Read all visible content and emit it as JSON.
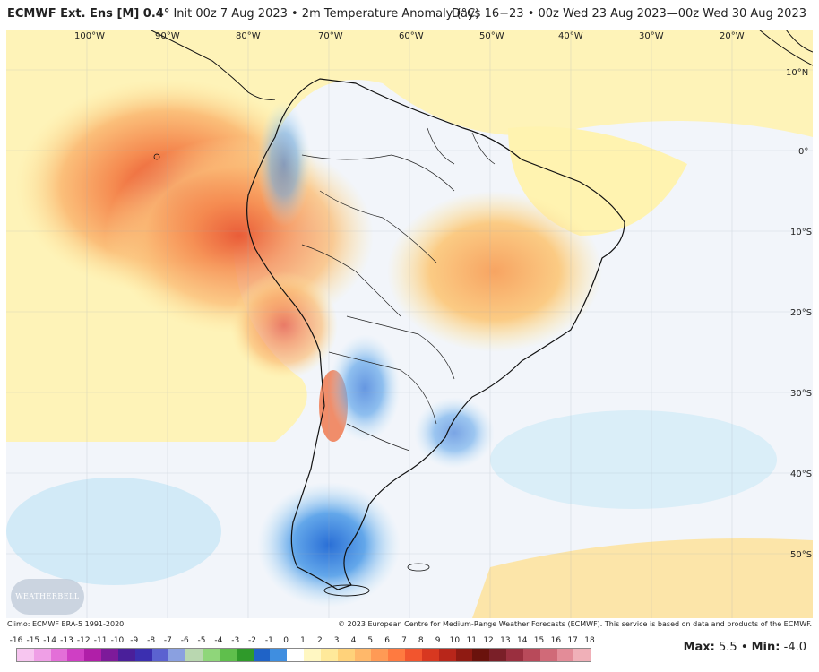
{
  "header": {
    "model_name": "ECMWF Ext. Ens [M] 0.4°",
    "run_info": " Init 00z 7 Aug 2023 • 2m Temperature Anomaly (°C)",
    "valid_range": "Days 16−23 • 00z Wed 23 Aug 2023—00z Wed 30 Aug 2023"
  },
  "map": {
    "longitude_labels": [
      "100°W",
      "90°W",
      "80°W",
      "70°W",
      "60°W",
      "50°W",
      "40°W",
      "30°W",
      "20°W"
    ],
    "latitude_labels": [
      "10°N",
      "0°",
      "10°S",
      "20°S",
      "30°S",
      "40°S",
      "50°S"
    ],
    "logo_text": "WEATHERBELL"
  },
  "footer": {
    "climo_note": "Climo: ECMWF ERA-5 1991-2020",
    "copyright": "© 2023 European Centre for Medium-Range Weather Forecasts (ECMWF). This service is based on data and products of the ECMWF."
  },
  "legend": {
    "values": [
      "-16",
      "-15",
      "-14",
      "-13",
      "-12",
      "-11",
      "-10",
      "-9",
      "-8",
      "-7",
      "-6",
      "-5",
      "-4",
      "-3",
      "-2",
      "-1",
      "0",
      "1",
      "2",
      "3",
      "4",
      "5",
      "6",
      "7",
      "8",
      "9",
      "10",
      "11",
      "12",
      "13",
      "14",
      "15",
      "16",
      "17",
      "18"
    ],
    "colors": [
      "#f7c6f0",
      "#ef9fe6",
      "#e36fd8",
      "#cf3fc4",
      "#b01fa8",
      "#7d1a9a",
      "#4a1f9a",
      "#3b2fb0",
      "#5b62d0",
      "#8aa0e0",
      "#b9d7b0",
      "#8fd67a",
      "#5fbf4c",
      "#2f9a2a",
      "#1f63c7",
      "#3f8ee0",
      "#ffffff",
      "#fff7c2",
      "#ffe99a",
      "#ffd27a",
      "#ffb86a",
      "#ff9a55",
      "#ff7a40",
      "#f2552e",
      "#d83820",
      "#b8261a",
      "#8f1a12",
      "#6a120c",
      "#7a1f28",
      "#9a2f3f",
      "#b84a5a",
      "#d06a78",
      "#e38c98",
      "#f0b0b8"
    ],
    "max_label": "Max:",
    "max_value": "5.5",
    "separator": " • ",
    "min_label": "Min:",
    "min_value": "-4.0"
  }
}
